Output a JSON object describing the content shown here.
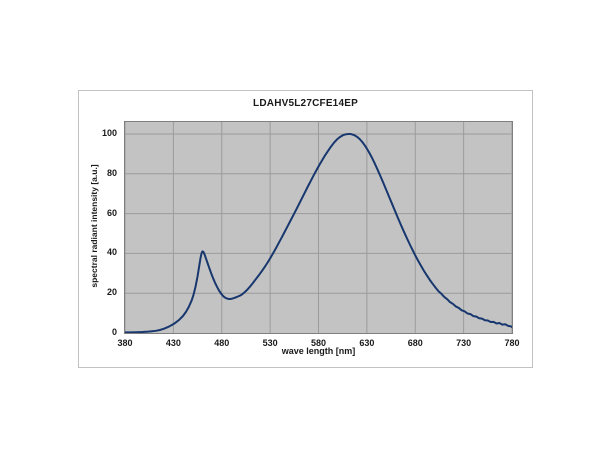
{
  "chart_data": {
    "type": "line",
    "title": "LDAHV5L27CFE14EP",
    "xlabel": "wave length  [nm]",
    "ylabel": "spectral  radiant  intensity  [a.u.]",
    "xlim": [
      380,
      780
    ],
    "ylim": [
      0,
      106
    ],
    "x_ticks": [
      380,
      430,
      480,
      530,
      580,
      630,
      680,
      730,
      780
    ],
    "y_ticks": [
      0,
      20,
      40,
      60,
      80,
      100
    ],
    "grid": true,
    "legend": "none",
    "colors": {
      "line": "#17376e",
      "plot_bg": "#c3c3c3",
      "grid": "#9b9b9b",
      "plot_border": "#7f7f7f",
      "box_border": "#c2c2c2",
      "text": "#1a1a1a"
    },
    "series": [
      {
        "name": "spectral radiant intensity",
        "color": "#17376e",
        "points": [
          [
            380,
            0.3
          ],
          [
            386,
            0.3
          ],
          [
            392,
            0.4
          ],
          [
            398,
            0.5
          ],
          [
            404,
            0.7
          ],
          [
            408,
            0.9
          ],
          [
            412,
            1.1
          ],
          [
            416,
            1.5
          ],
          [
            420,
            2.1
          ],
          [
            424,
            2.9
          ],
          [
            428,
            3.9
          ],
          [
            432,
            5.1
          ],
          [
            436,
            6.6
          ],
          [
            440,
            8.6
          ],
          [
            443,
            10.6
          ],
          [
            446,
            13.2
          ],
          [
            449,
            16.5
          ],
          [
            451,
            19.5
          ],
          [
            453,
            23.5
          ],
          [
            455,
            28.5
          ],
          [
            456,
            31.5
          ],
          [
            457,
            34.5
          ],
          [
            458,
            37.5
          ],
          [
            459,
            39.8
          ],
          [
            460,
            41
          ],
          [
            461,
            40.8
          ],
          [
            462,
            39.8
          ],
          [
            463,
            38.4
          ],
          [
            465,
            35.6
          ],
          [
            467,
            32.8
          ],
          [
            469,
            30.1
          ],
          [
            471,
            27.6
          ],
          [
            473,
            25.3
          ],
          [
            475,
            23.3
          ],
          [
            477,
            21.5
          ],
          [
            479,
            20
          ],
          [
            481,
            18.8
          ],
          [
            483,
            17.9
          ],
          [
            485,
            17.4
          ],
          [
            487,
            17.1
          ],
          [
            489,
            17.1
          ],
          [
            491,
            17.3
          ],
          [
            493,
            17.6
          ],
          [
            495,
            18
          ],
          [
            497,
            18.4
          ],
          [
            499,
            18.8
          ],
          [
            501,
            19.4
          ],
          [
            503,
            20.2
          ],
          [
            505,
            21.1
          ],
          [
            507,
            22.1
          ],
          [
            509,
            23.2
          ],
          [
            512,
            25
          ],
          [
            515,
            26.9
          ],
          [
            518,
            28.8
          ],
          [
            521,
            30.8
          ],
          [
            524,
            32.9
          ],
          [
            527,
            35.1
          ],
          [
            530,
            37.5
          ],
          [
            533,
            40
          ],
          [
            536,
            42.6
          ],
          [
            539,
            45.3
          ],
          [
            542,
            48
          ],
          [
            545,
            50.8
          ],
          [
            548,
            53.6
          ],
          [
            551,
            56.4
          ],
          [
            554,
            59.2
          ],
          [
            557,
            62
          ],
          [
            560,
            64.9
          ],
          [
            563,
            67.8
          ],
          [
            566,
            70.7
          ],
          [
            569,
            73.6
          ],
          [
            572,
            76.4
          ],
          [
            575,
            79.2
          ],
          [
            578,
            81.9
          ],
          [
            581,
            84.5
          ],
          [
            584,
            87
          ],
          [
            587,
            89.4
          ],
          [
            590,
            91.6
          ],
          [
            593,
            93.7
          ],
          [
            596,
            95.6
          ],
          [
            599,
            97.2
          ],
          [
            602,
            98.4
          ],
          [
            605,
            99.3
          ],
          [
            608,
            99.8
          ],
          [
            611,
            100
          ],
          [
            614,
            99.9
          ],
          [
            617,
            99.4
          ],
          [
            620,
            98.5
          ],
          [
            623,
            97.2
          ],
          [
            626,
            95.5
          ],
          [
            629,
            93.4
          ],
          [
            632,
            91
          ],
          [
            635,
            88.3
          ],
          [
            638,
            85.3
          ],
          [
            641,
            82.1
          ],
          [
            644,
            78.8
          ],
          [
            647,
            75.4
          ],
          [
            650,
            71.9
          ],
          [
            653,
            68.4
          ],
          [
            656,
            64.9
          ],
          [
            659,
            61.4
          ],
          [
            662,
            57.9
          ],
          [
            665,
            54.5
          ],
          [
            668,
            51.2
          ],
          [
            671,
            48
          ],
          [
            674,
            44.9
          ],
          [
            677,
            41.9
          ],
          [
            680,
            39
          ],
          [
            683,
            36.3
          ],
          [
            686,
            33.7
          ],
          [
            689,
            31.2
          ],
          [
            692,
            28.9
          ],
          [
            695,
            26.7
          ],
          [
            698,
            24.7
          ],
          [
            701,
            22.8
          ],
          [
            704,
            21
          ],
          [
            707,
            19.7
          ],
          [
            710,
            18.1
          ],
          [
            713,
            17
          ],
          [
            716,
            15.5
          ],
          [
            719,
            14.6
          ],
          [
            722,
            13.3
          ],
          [
            725,
            12.6
          ],
          [
            728,
            11.4
          ],
          [
            731,
            10.9
          ],
          [
            734,
            9.8
          ],
          [
            737,
            9.5
          ],
          [
            740,
            8.5
          ],
          [
            743,
            8.3
          ],
          [
            746,
            7.4
          ],
          [
            749,
            7.2
          ],
          [
            752,
            6.4
          ],
          [
            755,
            6.3
          ],
          [
            758,
            5.5
          ],
          [
            761,
            5.6
          ],
          [
            764,
            4.8
          ],
          [
            767,
            5
          ],
          [
            770,
            4.2
          ],
          [
            773,
            4.4
          ],
          [
            776,
            3.6
          ],
          [
            779,
            3.3
          ],
          [
            780,
            3
          ]
        ]
      }
    ]
  }
}
